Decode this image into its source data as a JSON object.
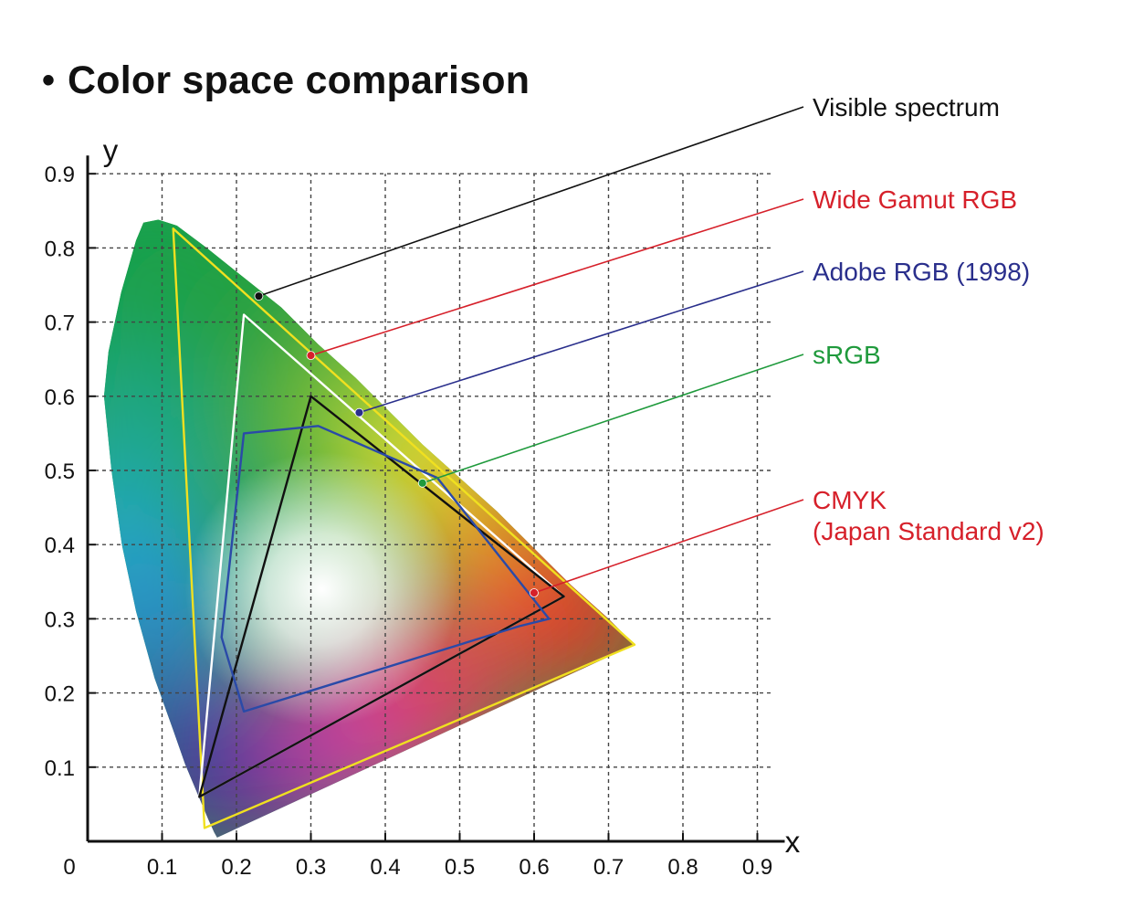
{
  "title_bullet": "•",
  "title": "Color space comparison",
  "chart_data": {
    "type": "line",
    "xlabel": "x",
    "ylabel": "y",
    "xlim": [
      0,
      0.9
    ],
    "ylim": [
      0,
      0.9
    ],
    "x_ticks": [
      "0",
      "0.1",
      "0.2",
      "0.3",
      "0.4",
      "0.5",
      "0.6",
      "0.7",
      "0.8",
      "0.9"
    ],
    "y_ticks": [
      "0.1",
      "0.2",
      "0.3",
      "0.4",
      "0.5",
      "0.6",
      "0.7",
      "0.8",
      "0.9"
    ],
    "grid": true,
    "spectral_locus": [
      [
        0.174,
        0.005
      ],
      [
        0.17,
        0.012
      ],
      [
        0.162,
        0.03
      ],
      [
        0.151,
        0.056
      ],
      [
        0.131,
        0.104
      ],
      [
        0.115,
        0.15
      ],
      [
        0.09,
        0.22
      ],
      [
        0.065,
        0.31
      ],
      [
        0.046,
        0.4
      ],
      [
        0.032,
        0.5
      ],
      [
        0.022,
        0.6
      ],
      [
        0.028,
        0.66
      ],
      [
        0.045,
        0.74
      ],
      [
        0.065,
        0.81
      ],
      [
        0.075,
        0.834
      ],
      [
        0.095,
        0.838
      ],
      [
        0.12,
        0.83
      ],
      [
        0.16,
        0.8
      ],
      [
        0.21,
        0.76
      ],
      [
        0.26,
        0.72
      ],
      [
        0.31,
        0.67
      ],
      [
        0.36,
        0.625
      ],
      [
        0.41,
        0.575
      ],
      [
        0.45,
        0.535
      ],
      [
        0.5,
        0.49
      ],
      [
        0.55,
        0.445
      ],
      [
        0.6,
        0.395
      ],
      [
        0.65,
        0.345
      ],
      [
        0.7,
        0.3
      ],
      [
        0.735,
        0.265
      ]
    ],
    "series": [
      {
        "name": "Visible spectrum",
        "color": "#111111",
        "marker": [
          0.23,
          0.735
        ],
        "polygon": []
      },
      {
        "name": "Wide Gamut RGB",
        "color": "#f0e020",
        "label_color": "#d6202a",
        "marker": [
          0.3,
          0.655
        ],
        "polygon": [
          [
            0.735,
            0.265
          ],
          [
            0.115,
            0.826
          ],
          [
            0.157,
            0.018
          ]
        ]
      },
      {
        "name": "Adobe RGB (1998)",
        "color": "#ffffff",
        "label_color": "#2a2f8c",
        "marker": [
          0.365,
          0.578
        ],
        "polygon": [
          [
            0.64,
            0.33
          ],
          [
            0.21,
            0.71
          ],
          [
            0.15,
            0.06
          ]
        ]
      },
      {
        "name": "sRGB",
        "color": "#111111",
        "label_color": "#1f9a3c",
        "marker": [
          0.45,
          0.483
        ],
        "polygon": [
          [
            0.64,
            0.33
          ],
          [
            0.3,
            0.6
          ],
          [
            0.15,
            0.06
          ]
        ]
      },
      {
        "name": "CMYK",
        "name_line2": "(Japan Standard v2)",
        "color": "#2a4aa8",
        "label_color": "#d6202a",
        "marker": [
          0.6,
          0.335
        ],
        "polygon": [
          [
            0.21,
            0.55
          ],
          [
            0.31,
            0.56
          ],
          [
            0.47,
            0.49
          ],
          [
            0.62,
            0.3
          ],
          [
            0.58,
            0.29
          ],
          [
            0.21,
            0.175
          ],
          [
            0.18,
            0.275
          ]
        ]
      }
    ]
  }
}
